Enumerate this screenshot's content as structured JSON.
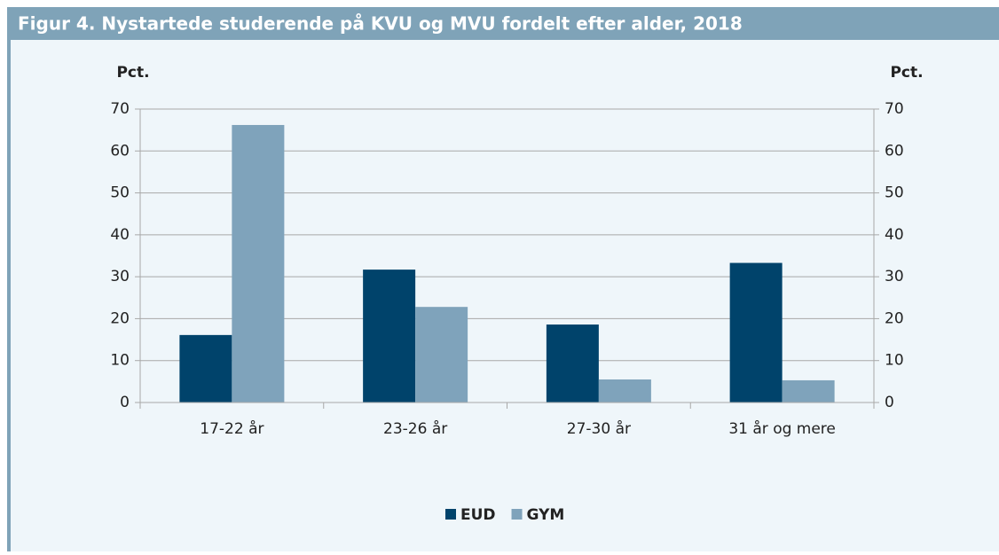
{
  "chart_data": {
    "type": "bar",
    "title": "Figur 4. Nystartede studerende på KVU og MVU fordelt efter alder, 2018",
    "ylabel": "Pct.",
    "y2label": "Pct.",
    "categories": [
      "17-22 år",
      "23-26 år",
      "27-30 år",
      "31 år og mere"
    ],
    "series": [
      {
        "name": "EUD",
        "color": "#00436b",
        "values": [
          16.1,
          31.7,
          18.6,
          33.3
        ]
      },
      {
        "name": "GYM",
        "color": "#7fa3bb",
        "values": [
          66.2,
          22.8,
          5.5,
          5.3
        ]
      }
    ],
    "ylim": [
      0,
      70
    ],
    "yticks": [
      0,
      10,
      20,
      30,
      40,
      50,
      60,
      70
    ],
    "y2lim": [
      0,
      70
    ],
    "y2ticks": [
      0,
      10,
      20,
      30,
      40,
      50,
      60,
      70
    ],
    "grid": true,
    "legend": "bottom"
  }
}
